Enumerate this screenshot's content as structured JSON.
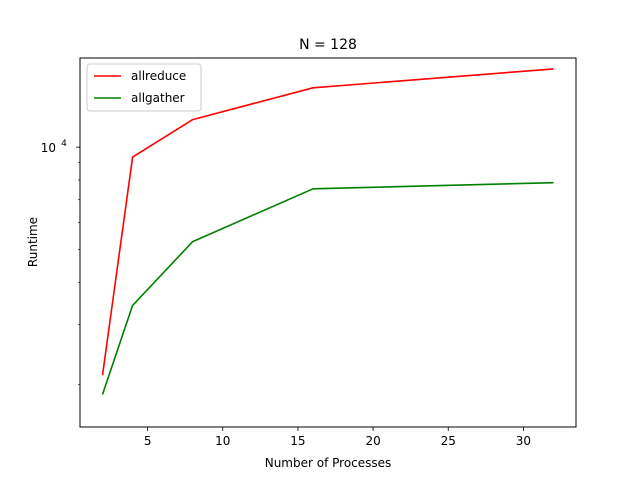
{
  "chart_data": {
    "type": "line",
    "title": "N = 128",
    "xlabel": "Number of Processes",
    "ylabel": "Runtime",
    "x": [
      2,
      4,
      8,
      16,
      32
    ],
    "series": [
      {
        "name": "allreduce",
        "color": "#ff0000",
        "values": [
          2130,
          9350,
          12050,
          14950,
          17000
        ]
      },
      {
        "name": "allgather",
        "color": "#008000",
        "values": [
          1870,
          3420,
          5270,
          7540,
          7860
        ]
      }
    ],
    "xlim": [
      0.5,
      33.5
    ],
    "ylim": [
      1500,
      18300
    ],
    "yscale": "log",
    "xticks": [
      5,
      10,
      15,
      20,
      25,
      30
    ],
    "xtick_labels": [
      "5",
      "10",
      "15",
      "20",
      "25",
      "30"
    ],
    "yticks": [
      10000
    ],
    "ytick_labels": [
      {
        "base": "10",
        "exp": "4"
      }
    ],
    "legend_position": "top-left",
    "grid": false
  }
}
